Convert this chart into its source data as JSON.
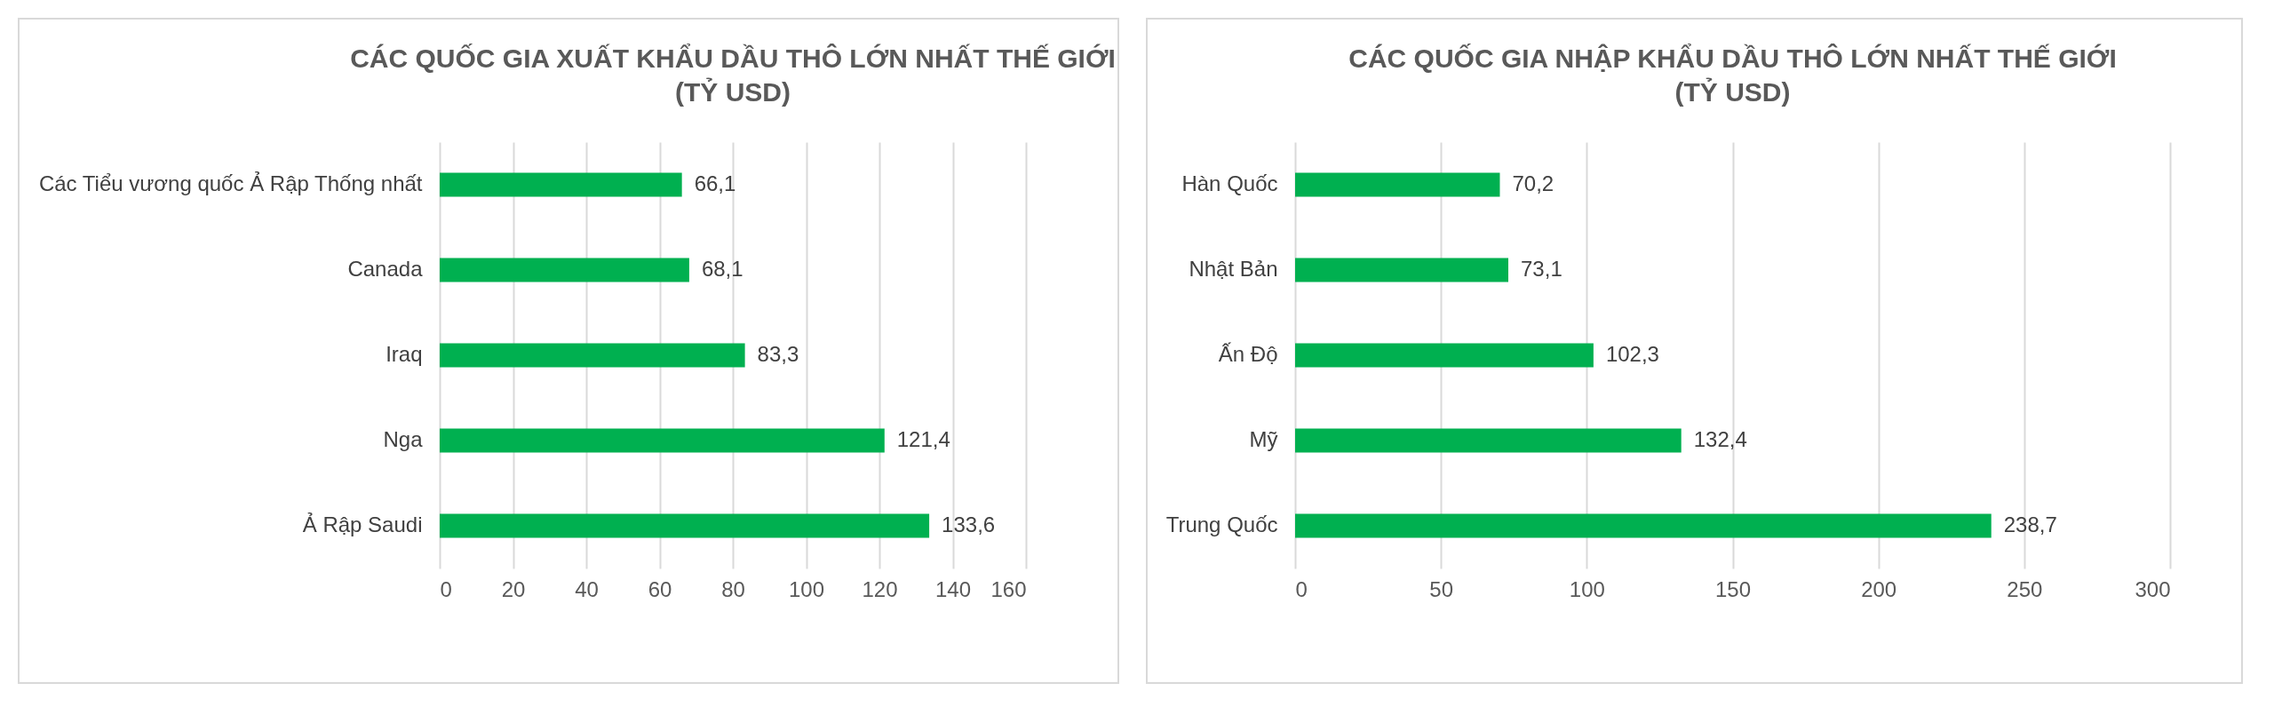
{
  "chart_data": [
    {
      "type": "bar",
      "orientation": "horizontal",
      "title": "CÁC QUỐC GIA XUẤT KHẨU DẦU THÔ LỚN NHẤT THẾ GIỚI",
      "subtitle": "(TỶ USD)",
      "categories": [
        "Các Tiểu vương quốc Ả Rập Thống nhất",
        "Canada",
        "Iraq",
        "Nga",
        "Ả Rập Saudi"
      ],
      "values": [
        66.1,
        68.1,
        83.3,
        121.4,
        133.6
      ],
      "value_labels": [
        "66,1",
        "68,1",
        "83,3",
        "121,4",
        "133,6"
      ],
      "color": "#00b050",
      "xlim": [
        0,
        160
      ],
      "xticks": [
        0,
        20,
        40,
        60,
        80,
        100,
        120,
        140,
        160
      ],
      "grid": "x"
    },
    {
      "type": "bar",
      "orientation": "horizontal",
      "title": "CÁC QUỐC GIA NHẬP KHẨU DẦU THÔ LỚN NHẤT THẾ GIỚI",
      "subtitle": "(TỶ USD)",
      "categories": [
        "Hàn Quốc",
        "Nhật Bản",
        "Ấn Độ",
        "Mỹ",
        "Trung Quốc"
      ],
      "values": [
        70.2,
        73.1,
        102.3,
        132.4,
        238.7
      ],
      "value_labels": [
        "70,2",
        "73,1",
        "102,3",
        "132,4",
        "238,7"
      ],
      "color": "#00b050",
      "xlim": [
        0,
        300
      ],
      "xticks": [
        0,
        50,
        100,
        150,
        200,
        250,
        300
      ],
      "grid": "x"
    }
  ]
}
